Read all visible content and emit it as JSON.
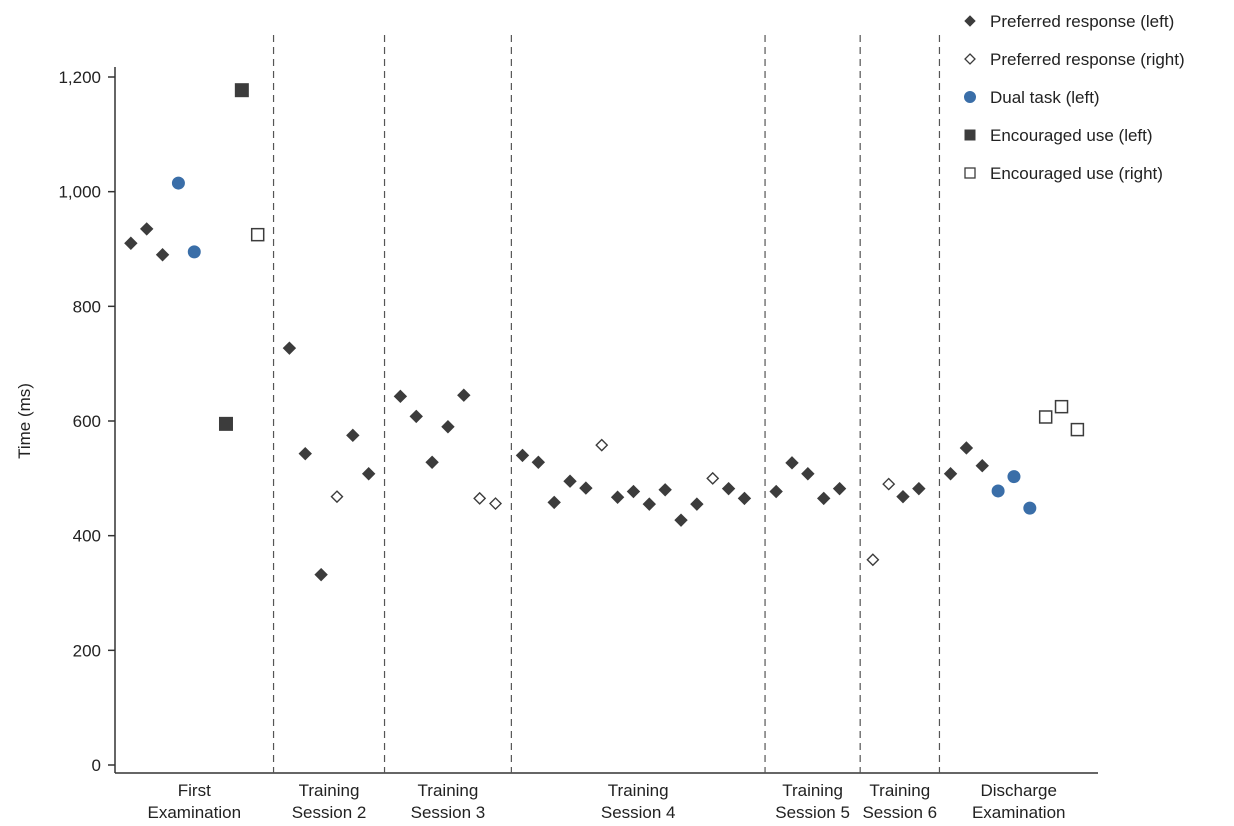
{
  "chart_data": {
    "type": "scatter",
    "ylabel": "Time (ms)",
    "xlabel": "",
    "ylim": [
      0,
      1200
    ],
    "yticks": [
      0,
      200,
      400,
      600,
      800,
      "1,000",
      "1,200"
    ],
    "grid": false,
    "legend_position": "top-right",
    "sessions": [
      {
        "label": [
          "First",
          "Examination"
        ],
        "start": 0,
        "end": 10
      },
      {
        "label": [
          "Training",
          "Session 2"
        ],
        "start": 10,
        "end": 17
      },
      {
        "label": [
          "Training",
          "Session 3"
        ],
        "start": 17,
        "end": 25
      },
      {
        "label": [
          "Training",
          "Session 4"
        ],
        "start": 25,
        "end": 41
      },
      {
        "label": [
          "Training",
          "Session 5"
        ],
        "start": 41,
        "end": 47
      },
      {
        "label": [
          "Training",
          "Session 6"
        ],
        "start": 47,
        "end": 52
      },
      {
        "label": [
          "Discharge",
          "Examination"
        ],
        "start": 52,
        "end": 62
      }
    ],
    "series": [
      {
        "name": "Preferred response (left)",
        "marker": "diamond",
        "filled": true,
        "color": "#3c3c3c",
        "points": [
          [
            1,
            910
          ],
          [
            2,
            935
          ],
          [
            3,
            890
          ],
          [
            11,
            727
          ],
          [
            12,
            543
          ],
          [
            13,
            332
          ],
          [
            15,
            575
          ],
          [
            16,
            508
          ],
          [
            18,
            643
          ],
          [
            19,
            608
          ],
          [
            20,
            528
          ],
          [
            21,
            590
          ],
          [
            22,
            645
          ],
          [
            25.7,
            540
          ],
          [
            26.7,
            528
          ],
          [
            27.7,
            458
          ],
          [
            28.7,
            495
          ],
          [
            29.7,
            483
          ],
          [
            31.7,
            467
          ],
          [
            32.7,
            477
          ],
          [
            33.7,
            455
          ],
          [
            34.7,
            480
          ],
          [
            35.7,
            427
          ],
          [
            36.7,
            455
          ],
          [
            38.7,
            482
          ],
          [
            39.7,
            465
          ],
          [
            41.7,
            477
          ],
          [
            42.7,
            527
          ],
          [
            43.7,
            508
          ],
          [
            44.7,
            465
          ],
          [
            45.7,
            482
          ],
          [
            49.7,
            468
          ],
          [
            50.7,
            482
          ],
          [
            52.7,
            508
          ],
          [
            53.7,
            553
          ],
          [
            54.7,
            522
          ]
        ]
      },
      {
        "name": "Preferred response (right)",
        "marker": "diamond",
        "filled": false,
        "color": "#3c3c3c",
        "points": [
          [
            14,
            468
          ],
          [
            23,
            465
          ],
          [
            24,
            456
          ],
          [
            30.7,
            558
          ],
          [
            37.7,
            500
          ],
          [
            47.8,
            358
          ],
          [
            48.8,
            490
          ]
        ]
      },
      {
        "name": "Dual task (left)",
        "marker": "circle",
        "filled": true,
        "color": "#3a6ea8",
        "points": [
          [
            4,
            1015
          ],
          [
            5,
            895
          ],
          [
            55.7,
            478
          ],
          [
            56.7,
            503
          ],
          [
            57.7,
            448
          ]
        ]
      },
      {
        "name": "Encouraged use (left)",
        "marker": "square",
        "filled": true,
        "color": "#3c3c3c",
        "points": [
          [
            7,
            595
          ],
          [
            8,
            1177
          ]
        ]
      },
      {
        "name": "Encouraged use (right)",
        "marker": "square",
        "filled": false,
        "color": "#3c3c3c",
        "points": [
          [
            9,
            925
          ],
          [
            58.7,
            607
          ],
          [
            59.7,
            625
          ],
          [
            60.7,
            585
          ]
        ]
      }
    ]
  }
}
